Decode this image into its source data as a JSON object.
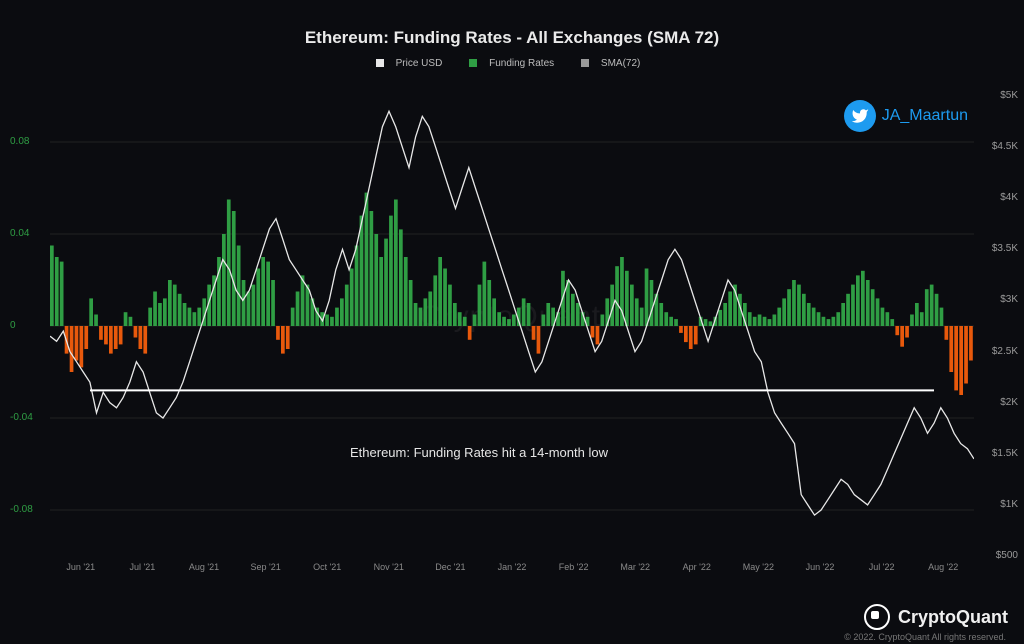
{
  "title": "Ethereum: Funding Rates - All Exchanges (SMA 72)",
  "legend_items": [
    {
      "label": "Price USD",
      "color": "#e8e8e8"
    },
    {
      "label": "Funding Rates",
      "color": "#2f9e44"
    },
    {
      "label": "SMA(72)",
      "color": "#9a9a9a"
    }
  ],
  "watermark_text": "CryptoQuant",
  "annotation": {
    "text": "Ethereum: Funding Rates hit a 14-month low",
    "line_color": "#ffffff"
  },
  "twitter": {
    "handle": "JA_Maartun"
  },
  "branding": {
    "name": "CryptoQuant",
    "copyright": "© 2022. CryptoQuant All rights reserved."
  },
  "background_color": "#0b0c10",
  "y_left": {
    "min": -0.1,
    "max": 0.1,
    "ticks": [
      0.08,
      0.04,
      0,
      -0.04,
      -0.08
    ],
    "color": "#2f9e44"
  },
  "y_right": {
    "min": 500,
    "max": 5000,
    "ticks": [
      5000,
      4500,
      4000,
      3500,
      3000,
      2500,
      2000,
      1500,
      1000,
      500
    ],
    "tick_labels": [
      "$5K",
      "$4.5K",
      "$4K",
      "$3.5K",
      "$3K",
      "$2.5K",
      "$2K",
      "$1.5K",
      "$1K",
      "$500"
    ],
    "color": "#9a9a9a"
  },
  "x_labels": [
    "Jun '21",
    "Jul '21",
    "Aug '21",
    "Sep '21",
    "Oct '21",
    "Nov '21",
    "Dec '21",
    "Jan '22",
    "Feb '22",
    "Mar '22",
    "Apr '22",
    "May '22",
    "Jun '22",
    "Jul '22",
    "Aug '22"
  ],
  "bar_colors": {
    "pos": "#2f9e44",
    "neg": "#e8590c"
  },
  "price_line_color": "#e8e8e8",
  "funding_values": [
    0.035,
    0.03,
    0.028,
    -0.012,
    -0.02,
    -0.015,
    -0.018,
    -0.01,
    0.012,
    0.005,
    -0.006,
    -0.008,
    -0.012,
    -0.01,
    -0.008,
    0.006,
    0.004,
    -0.005,
    -0.01,
    -0.012,
    0.008,
    0.015,
    0.01,
    0.012,
    0.02,
    0.018,
    0.014,
    0.01,
    0.008,
    0.006,
    0.008,
    0.012,
    0.018,
    0.022,
    0.03,
    0.04,
    0.055,
    0.05,
    0.035,
    0.02,
    0.015,
    0.018,
    0.025,
    0.03,
    0.028,
    0.02,
    -0.006,
    -0.012,
    -0.01,
    0.008,
    0.015,
    0.022,
    0.018,
    0.012,
    0.008,
    0.006,
    0.005,
    0.004,
    0.008,
    0.012,
    0.018,
    0.025,
    0.035,
    0.048,
    0.058,
    0.05,
    0.04,
    0.03,
    0.038,
    0.048,
    0.055,
    0.042,
    0.03,
    0.02,
    0.01,
    0.008,
    0.012,
    0.015,
    0.022,
    0.03,
    0.025,
    0.018,
    0.01,
    0.006,
    0.004,
    -0.006,
    0.005,
    0.018,
    0.028,
    0.02,
    0.012,
    0.006,
    0.004,
    0.003,
    0.005,
    0.008,
    0.012,
    0.01,
    -0.006,
    -0.012,
    0.005,
    0.01,
    0.008,
    0.006,
    0.024,
    0.02,
    0.014,
    0.01,
    0.006,
    0.004,
    -0.005,
    -0.008,
    0.005,
    0.012,
    0.018,
    0.026,
    0.03,
    0.024,
    0.018,
    0.012,
    0.008,
    0.025,
    0.02,
    0.014,
    0.01,
    0.006,
    0.004,
    0.003,
    -0.003,
    -0.007,
    -0.01,
    -0.008,
    0.004,
    0.003,
    0.002,
    0.004,
    0.007,
    0.01,
    0.015,
    0.018,
    0.014,
    0.01,
    0.006,
    0.004,
    0.005,
    0.004,
    0.003,
    0.005,
    0.008,
    0.012,
    0.016,
    0.02,
    0.018,
    0.014,
    0.01,
    0.008,
    0.006,
    0.004,
    0.003,
    0.004,
    0.006,
    0.01,
    0.014,
    0.018,
    0.022,
    0.024,
    0.02,
    0.016,
    0.012,
    0.008,
    0.006,
    0.003,
    -0.004,
    -0.009,
    -0.005,
    0.005,
    0.01,
    0.006,
    0.016,
    0.018,
    0.014,
    0.008,
    -0.006,
    -0.02,
    -0.028,
    -0.03,
    -0.025,
    -0.015
  ],
  "price_values": [
    2650,
    2600,
    2700,
    2500,
    2400,
    2300,
    2200,
    1900,
    2100,
    2000,
    1950,
    2050,
    2200,
    2400,
    2300,
    2100,
    1900,
    1850,
    1950,
    2050,
    2200,
    2400,
    2600,
    2800,
    3000,
    3200,
    3400,
    3300,
    3100,
    3000,
    3100,
    3300,
    3500,
    3700,
    3800,
    3600,
    3400,
    3300,
    3200,
    3100,
    2900,
    2800,
    3000,
    3300,
    3500,
    3300,
    3500,
    3800,
    4100,
    4400,
    4700,
    4850,
    4700,
    4500,
    4300,
    4600,
    4800,
    4700,
    4500,
    4300,
    4100,
    3900,
    4100,
    4300,
    4100,
    3900,
    3700,
    3500,
    3300,
    3100,
    2900,
    2700,
    2500,
    2300,
    2400,
    2600,
    2800,
    3000,
    3200,
    3100,
    2900,
    2700,
    2500,
    2600,
    2800,
    3000,
    2900,
    2700,
    2500,
    2600,
    2800,
    3000,
    3200,
    3400,
    3500,
    3400,
    3200,
    3000,
    2800,
    2600,
    2800,
    3000,
    3200,
    3100,
    2900,
    2700,
    2500,
    2400,
    2100,
    1900,
    1800,
    1700,
    1600,
    1100,
    1000,
    900,
    950,
    1050,
    1150,
    1250,
    1200,
    1100,
    1050,
    1000,
    1100,
    1200,
    1350,
    1500,
    1650,
    1800,
    1950,
    1850,
    1700,
    1800,
    1950,
    1850,
    1700,
    1600,
    1550,
    1450
  ]
}
